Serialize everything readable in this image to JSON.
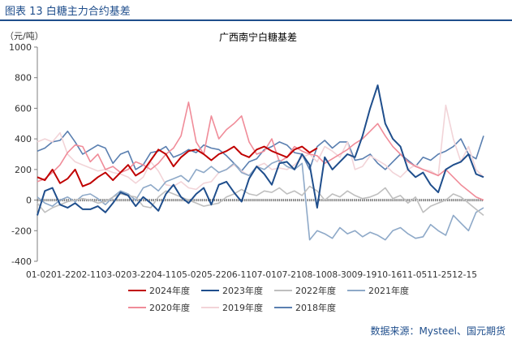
{
  "figure": {
    "title": "图表 13  白糖主力合约基差",
    "source": "数据来源：Mysteel、国元期货"
  },
  "colors": {
    "2024": "#c00000",
    "2023": "#1f4e8c",
    "2022": "#bfbfbf",
    "2021": "#8ea9c8",
    "2020": "#f08c99",
    "2019": "#f2d4d8",
    "2018": "#5a7fb0",
    "axis": "#7f7f7f",
    "zero_line": "#7f7f7f"
  },
  "chart_data": {
    "type": "line",
    "title": "广西南宁白糖基差",
    "ylabel": "（元/吨）",
    "xlabel": "",
    "ylim": [
      -400,
      1000
    ],
    "yticks": [
      1000,
      800,
      600,
      400,
      200,
      0,
      -200,
      -400
    ],
    "x_tick_label": "01-0201-2202-1103-0203-2204-1105-0205-2206-1107-0107-2108-1008-3009-1910-1611-0511-2512-15",
    "x": [
      0,
      1,
      2,
      3,
      4,
      5,
      6,
      7,
      8,
      9,
      10,
      11,
      12,
      13,
      14,
      15,
      16,
      17,
      18,
      19,
      20,
      21,
      22,
      23,
      24,
      25,
      26,
      27,
      28,
      29,
      30,
      31,
      32,
      33,
      34,
      35,
      36,
      37,
      38,
      39,
      40,
      41,
      42,
      43,
      44,
      45,
      46,
      47,
      48,
      49,
      50,
      51,
      52,
      53,
      54,
      55,
      56,
      57,
      58,
      59
    ],
    "legend": [
      "2024年度",
      "2023年度",
      "2022年度",
      "2021年度",
      "2020年度",
      "2019年度",
      "2018年度"
    ],
    "series": [
      {
        "name": "2024年度",
        "color_key": "2024",
        "values": [
          150,
          130,
          200,
          110,
          140,
          200,
          90,
          110,
          150,
          180,
          130,
          180,
          230,
          160,
          190,
          260,
          330,
          300,
          220,
          280,
          320,
          330,
          300,
          260,
          300,
          320,
          350,
          300,
          280,
          330,
          350,
          320,
          300,
          280,
          330,
          350,
          310,
          340,
          null,
          null,
          null,
          null,
          null,
          null,
          null,
          null,
          null,
          null,
          null,
          null,
          null,
          null,
          null,
          null,
          null,
          null,
          null,
          null,
          null,
          null
        ]
      },
      {
        "name": "2023年度",
        "color_key": "2023",
        "values": [
          -100,
          60,
          80,
          -30,
          -50,
          -20,
          -60,
          -60,
          -40,
          -80,
          -20,
          50,
          30,
          -40,
          20,
          -20,
          -70,
          40,
          100,
          20,
          -20,
          40,
          80,
          -30,
          100,
          120,
          50,
          -10,
          140,
          220,
          170,
          100,
          240,
          250,
          200,
          300,
          230,
          -50,
          280,
          200,
          250,
          300,
          280,
          420,
          600,
          750,
          500,
          400,
          350,
          200,
          150,
          180,
          100,
          50,
          200,
          230,
          250,
          300,
          170,
          150
        ]
      },
      {
        "name": "2022年度",
        "color_key": "2022",
        "values": [
          -20,
          -80,
          -50,
          -30,
          -10,
          0,
          10,
          0,
          -20,
          -10,
          20,
          40,
          30,
          20,
          -40,
          -50,
          20,
          60,
          40,
          20,
          0,
          -20,
          -40,
          -30,
          -20,
          20,
          40,
          70,
          40,
          30,
          60,
          50,
          80,
          40,
          60,
          30,
          90,
          60,
          0,
          40,
          20,
          60,
          30,
          10,
          20,
          40,
          80,
          10,
          30,
          -20,
          20,
          -80,
          -40,
          -20,
          0,
          40,
          20,
          -20,
          -60,
          -100
        ]
      },
      {
        "name": "2021年度",
        "color_key": "2021",
        "values": [
          20,
          -20,
          -40,
          0,
          20,
          -10,
          30,
          40,
          10,
          -30,
          20,
          60,
          40,
          0,
          80,
          100,
          60,
          120,
          140,
          160,
          120,
          200,
          180,
          220,
          180,
          200,
          240,
          180,
          160,
          220,
          200,
          240,
          260,
          220,
          200,
          240,
          -260,
          -200,
          -220,
          -250,
          -180,
          -220,
          -200,
          -240,
          -210,
          -230,
          -260,
          -200,
          -180,
          -220,
          -250,
          -240,
          -160,
          -200,
          -230,
          -100,
          -150,
          -200,
          -80,
          -50
        ]
      },
      {
        "name": "2020年度",
        "color_key": "2020",
        "values": [
          120,
          140,
          180,
          230,
          310,
          360,
          350,
          250,
          300,
          200,
          220,
          180,
          200,
          250,
          230,
          200,
          240,
          300,
          340,
          420,
          640,
          380,
          300,
          550,
          400,
          460,
          500,
          550,
          380,
          300,
          320,
          400,
          250,
          280,
          350,
          320,
          300,
          290,
          240,
          270,
          300,
          330,
          370,
          400,
          450,
          500,
          420,
          350,
          300,
          250,
          220,
          200,
          180,
          160,
          200,
          150,
          100,
          60,
          20,
          0
        ]
      },
      {
        "name": "2019年度",
        "color_key": "2019",
        "values": [
          380,
          400,
          380,
          440,
          300,
          250,
          230,
          210,
          190,
          200,
          180,
          170,
          150,
          110,
          150,
          250,
          190,
          100,
          90,
          120,
          80,
          70,
          110,
          120,
          180,
          200,
          230,
          190,
          160,
          220,
          240,
          200,
          210,
          200,
          230,
          280,
          300,
          250,
          350,
          320,
          280,
          380,
          200,
          220,
          290,
          260,
          230,
          180,
          150,
          200,
          230,
          200,
          190,
          160,
          620,
          400,
          250,
          350,
          200,
          150
        ]
      },
      {
        "name": "2018年度",
        "color_key": "2018",
        "values": [
          320,
          340,
          380,
          390,
          450,
          380,
          300,
          330,
          360,
          340,
          240,
          300,
          320,
          200,
          230,
          310,
          320,
          350,
          280,
          300,
          330,
          310,
          360,
          340,
          330,
          290,
          240,
          190,
          250,
          270,
          330,
          350,
          380,
          360,
          310,
          300,
          200,
          350,
          390,
          340,
          380,
          380,
          260,
          270,
          300,
          240,
          200,
          250,
          300,
          260,
          220,
          280,
          260,
          300,
          320,
          350,
          400,
          300,
          270,
          420
        ]
      }
    ]
  }
}
